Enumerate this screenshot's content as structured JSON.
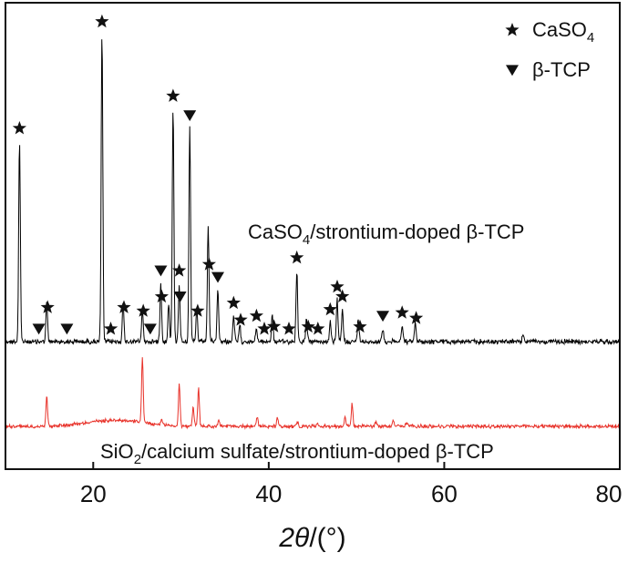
{
  "chart_data": {
    "type": "line",
    "xlabel_italic": "2θ",
    "xlabel_rest": "/(°)",
    "xlim": [
      10,
      80
    ],
    "x_ticks": [
      20,
      40,
      60,
      80
    ],
    "x_tick_labels": [
      "20",
      "40",
      "60",
      "80"
    ],
    "y_axis": "arbitrary intensity (no ticks, no labels)",
    "legend": {
      "placement": "top-right",
      "items": [
        {
          "marker": "star",
          "label_main": "CaSO",
          "label_sub": "4"
        },
        {
          "marker": "triangle-down",
          "label_main": "β-TCP",
          "label_sub": ""
        }
      ]
    },
    "series": [
      {
        "name": "CaSO4/strontium-doped β-TCP",
        "label_parts": [
          "CaSO",
          "4",
          "/strontium-doped β-TCP"
        ],
        "color": "#000000",
        "baseline": 0.0,
        "peaks": [
          {
            "x": 11.6,
            "h": 0.62
          },
          {
            "x": 14.7,
            "h": 0.12
          },
          {
            "x": 21.0,
            "h": 0.95
          },
          {
            "x": 23.4,
            "h": 0.12
          },
          {
            "x": 25.6,
            "h": 0.1
          },
          {
            "x": 27.7,
            "h": 0.18
          },
          {
            "x": 28.6,
            "h": 0.12
          },
          {
            "x": 29.1,
            "h": 0.72
          },
          {
            "x": 29.8,
            "h": 0.18
          },
          {
            "x": 31.0,
            "h": 0.66
          },
          {
            "x": 31.8,
            "h": 0.1
          },
          {
            "x": 33.1,
            "h": 0.36
          },
          {
            "x": 34.2,
            "h": 0.16
          },
          {
            "x": 36.0,
            "h": 0.08
          },
          {
            "x": 36.7,
            "h": 0.05
          },
          {
            "x": 38.6,
            "h": 0.04
          },
          {
            "x": 40.4,
            "h": 0.08
          },
          {
            "x": 43.2,
            "h": 0.22
          },
          {
            "x": 44.3,
            "h": 0.07
          },
          {
            "x": 47.0,
            "h": 0.06
          },
          {
            "x": 47.8,
            "h": 0.13
          },
          {
            "x": 48.4,
            "h": 0.1
          },
          {
            "x": 50.2,
            "h": 0.07
          },
          {
            "x": 53.0,
            "h": 0.04
          },
          {
            "x": 55.2,
            "h": 0.05
          },
          {
            "x": 56.7,
            "h": 0.06
          },
          {
            "x": 69.0,
            "h": 0.025
          }
        ],
        "markers": [
          {
            "x": 11.6,
            "type": "star"
          },
          {
            "x": 14.8,
            "type": "star"
          },
          {
            "x": 21.0,
            "type": "star"
          },
          {
            "x": 23.5,
            "type": "star"
          },
          {
            "x": 25.7,
            "type": "star"
          },
          {
            "x": 27.8,
            "type": "star"
          },
          {
            "x": 29.1,
            "type": "star"
          },
          {
            "x": 29.8,
            "type": "star"
          },
          {
            "x": 33.2,
            "type": "star"
          },
          {
            "x": 31.9,
            "type": "star"
          },
          {
            "x": 22.0,
            "type": "star"
          },
          {
            "x": 36.0,
            "type": "star"
          },
          {
            "x": 36.8,
            "type": "star"
          },
          {
            "x": 38.6,
            "type": "star"
          },
          {
            "x": 39.5,
            "type": "star"
          },
          {
            "x": 40.6,
            "type": "star"
          },
          {
            "x": 42.3,
            "type": "star"
          },
          {
            "x": 43.2,
            "type": "star"
          },
          {
            "x": 44.5,
            "type": "star"
          },
          {
            "x": 45.6,
            "type": "star"
          },
          {
            "x": 47.0,
            "type": "star"
          },
          {
            "x": 47.8,
            "type": "star"
          },
          {
            "x": 48.4,
            "type": "star"
          },
          {
            "x": 50.4,
            "type": "star"
          },
          {
            "x": 55.2,
            "type": "star"
          },
          {
            "x": 56.8,
            "type": "star"
          },
          {
            "x": 13.8,
            "type": "triangle-down"
          },
          {
            "x": 17.0,
            "type": "triangle-down"
          },
          {
            "x": 26.5,
            "type": "triangle-down"
          },
          {
            "x": 27.7,
            "type": "triangle-down"
          },
          {
            "x": 29.9,
            "type": "triangle-down"
          },
          {
            "x": 31.0,
            "type": "triangle-down"
          },
          {
            "x": 34.2,
            "type": "triangle-down"
          },
          {
            "x": 53.0,
            "type": "triangle-down"
          }
        ]
      },
      {
        "name": "SiO2/calcium sulfate/strontium-doped β-TCP",
        "label_parts": [
          "SiO",
          "2",
          "/calcium sulfate/strontium-doped β-TCP"
        ],
        "color": "#e8322a",
        "baseline": 0.0,
        "hump": {
          "center": 22.5,
          "width": 4.5,
          "h": 0.06
        },
        "peaks": [
          {
            "x": 14.7,
            "h": 0.28
          },
          {
            "x": 25.6,
            "h": 0.62
          },
          {
            "x": 27.8,
            "h": 0.05
          },
          {
            "x": 29.8,
            "h": 0.4
          },
          {
            "x": 31.4,
            "h": 0.18
          },
          {
            "x": 32.0,
            "h": 0.36
          },
          {
            "x": 34.3,
            "h": 0.06
          },
          {
            "x": 38.7,
            "h": 0.1
          },
          {
            "x": 41.0,
            "h": 0.08
          },
          {
            "x": 43.3,
            "h": 0.04
          },
          {
            "x": 45.5,
            "h": 0.03
          },
          {
            "x": 48.7,
            "h": 0.1
          },
          {
            "x": 49.5,
            "h": 0.22
          },
          {
            "x": 52.2,
            "h": 0.05
          },
          {
            "x": 54.2,
            "h": 0.05
          },
          {
            "x": 55.7,
            "h": 0.04
          }
        ]
      }
    ]
  }
}
